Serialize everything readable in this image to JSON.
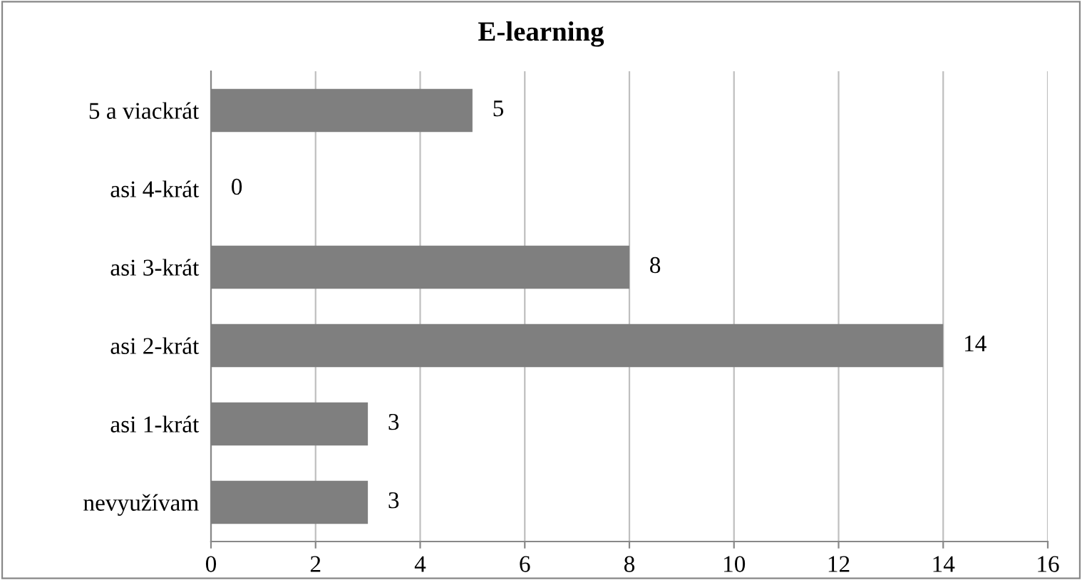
{
  "chart_data": {
    "type": "bar",
    "title": "E-learning",
    "orientation": "horizontal",
    "categories": [
      "5 a viackrát",
      "asi 4-krát",
      "asi 3-krát",
      "asi 2-krát",
      "asi 1-krát",
      "nevyužívam"
    ],
    "values": [
      5,
      0,
      8,
      14,
      3,
      3
    ],
    "color": "#7f7f7f",
    "xlim": [
      0,
      16
    ],
    "xticks": [
      0,
      2,
      4,
      6,
      8,
      10,
      12,
      14,
      16
    ],
    "grid": "x",
    "data_labels": true,
    "legend": false
  }
}
